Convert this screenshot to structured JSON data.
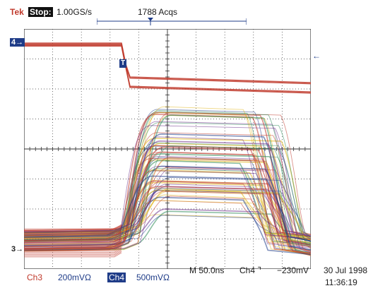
{
  "header": {
    "brand": "Tek",
    "state": "Stop:",
    "sample_rate": "1.00GS/s",
    "acquisitions": "1788 Acqs"
  },
  "markers": {
    "ch4": "4→",
    "ch3": "3→",
    "trigger_point": "T",
    "trigger_level": "←"
  },
  "footer": {
    "ch3_label": "Ch3",
    "ch3_scale": "200mVΩ",
    "ch4_label": "Ch4",
    "ch4_scale": "500mVΩ",
    "timebase": "M 50.0ns",
    "trigger_source": "Ch4 ⌝",
    "trigger_level": "−230mV",
    "date": "30 Jul 1998",
    "time": "11:36:19"
  },
  "colors": {
    "grid": "#333333",
    "ch4": "#c0392b",
    "persistence": [
      "#c0392b",
      "#1f3c88",
      "#e0b41a",
      "#2e8b57",
      "#6b2f8a"
    ]
  }
}
